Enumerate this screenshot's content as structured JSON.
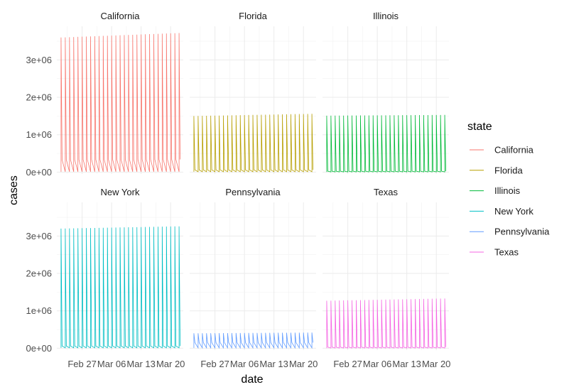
{
  "chart_data": {
    "type": "line",
    "facet_by": "state",
    "xlabel": "date",
    "ylabel": "cases",
    "x_ticks": [
      "Feb 27",
      "Mar 06",
      "Mar 13",
      "Mar 20"
    ],
    "x_range": [
      "2021-02-21",
      "2021-03-23"
    ],
    "y_ticks": [
      {
        "value": 0,
        "label": "0e+00"
      },
      {
        "value": 1000000,
        "label": "1e+06"
      },
      {
        "value": 2000000,
        "label": "2e+06"
      },
      {
        "value": 3000000,
        "label": "3e+06"
      }
    ],
    "ylim": [
      -50000,
      3900000
    ],
    "grid": true,
    "legend": {
      "title": "state",
      "position": "right"
    },
    "series": [
      {
        "name": "California",
        "color": "#F8766D",
        "dates_start": "2021-02-22",
        "dates_end": "2021-03-22",
        "cumulative_cases": [
          3600000,
          3720000
        ],
        "daily_high": [
          330000,
          340000
        ],
        "daily_low": 10000
      },
      {
        "name": "Florida",
        "color": "#B79F00",
        "dates_start": "2021-02-22",
        "dates_end": "2021-03-22",
        "cumulative_cases": [
          1500000,
          1560000
        ],
        "daily_high": [
          60000,
          60000
        ],
        "daily_low": 10000
      },
      {
        "name": "Illinois",
        "color": "#00BA38",
        "dates_start": "2021-02-22",
        "dates_end": "2021-03-22",
        "cumulative_cases": [
          1510000,
          1530000
        ],
        "daily_high": [
          25000,
          25000
        ],
        "daily_low": 5000
      },
      {
        "name": "New York",
        "color": "#00BFC4",
        "dates_start": "2021-02-22",
        "dates_end": "2021-03-22",
        "cumulative_cases": [
          3200000,
          3260000
        ],
        "daily_high": [
          60000,
          60000
        ],
        "daily_low": 10000
      },
      {
        "name": "Pennsylvania",
        "color": "#619CFF",
        "dates_start": "2021-02-22",
        "dates_end": "2021-03-22",
        "cumulative_cases": [
          400000,
          420000
        ],
        "daily_high": [
          150000,
          150000
        ],
        "daily_low": 10000
      },
      {
        "name": "Texas",
        "color": "#F564E3",
        "dates_start": "2021-02-22",
        "dates_end": "2021-03-22",
        "cumulative_cases": [
          1270000,
          1330000
        ],
        "daily_high": [
          30000,
          30000
        ],
        "daily_low": 5000
      }
    ]
  }
}
